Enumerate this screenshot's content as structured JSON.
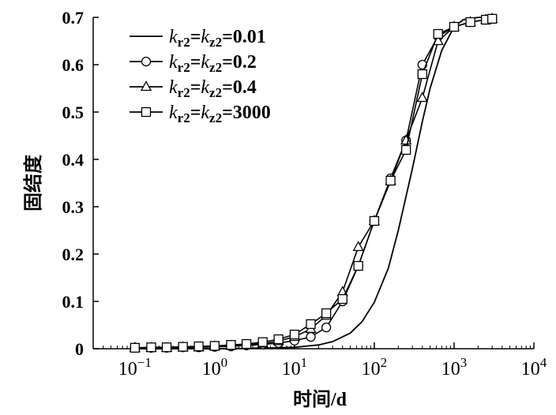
{
  "chart_data": {
    "type": "line",
    "title": "",
    "xlabel": "时间/d",
    "ylabel": "固结度",
    "x_scale": "log",
    "xlim": [
      0.03,
      10000
    ],
    "ylim": [
      0,
      0.7
    ],
    "x_ticks": [
      {
        "value": 0.1,
        "base": "10",
        "exp": "−1"
      },
      {
        "value": 1,
        "base": "10",
        "exp": "0"
      },
      {
        "value": 10,
        "base": "10",
        "exp": "1"
      },
      {
        "value": 100,
        "base": "10",
        "exp": "2"
      },
      {
        "value": 1000,
        "base": "10",
        "exp": "3"
      },
      {
        "value": 10000,
        "base": "10",
        "exp": "4"
      }
    ],
    "y_ticks": [
      {
        "value": 0,
        "label": "0"
      },
      {
        "value": 0.1,
        "label": "0.1"
      },
      {
        "value": 0.2,
        "label": "0.2"
      },
      {
        "value": 0.3,
        "label": "0.3"
      },
      {
        "value": 0.4,
        "label": "0.4"
      },
      {
        "value": 0.5,
        "label": "0.5"
      },
      {
        "value": 0.6,
        "label": "0.6"
      },
      {
        "value": 0.7,
        "label": "0.7"
      }
    ],
    "grid": false,
    "legend_position": "top-left",
    "series": [
      {
        "name": "k_r2=k_z2=0.01",
        "legend": {
          "k1": "k",
          "s1": "r2",
          "eq1": "=",
          "k2": "k",
          "s2": "z2",
          "eq2": "=",
          "val": "0.01"
        },
        "marker": "none",
        "x": [
          0.1,
          1,
          3,
          6,
          10,
          20,
          30,
          50,
          70,
          100,
          150,
          200,
          300,
          400,
          500,
          700,
          1000,
          1300,
          2000,
          3000
        ],
        "y": [
          0.0,
          0.0,
          0.001,
          0.002,
          0.003,
          0.008,
          0.015,
          0.033,
          0.057,
          0.098,
          0.17,
          0.25,
          0.38,
          0.48,
          0.55,
          0.63,
          0.68,
          0.695,
          0.7,
          0.7
        ]
      },
      {
        "name": "k_r2=k_z2=0.2",
        "legend": {
          "k1": "k",
          "s1": "r2",
          "eq1": "=",
          "k2": "k",
          "s2": "z2",
          "eq2": "=",
          "val": "0.2"
        },
        "marker": "circle",
        "x": [
          0.1,
          0.16,
          0.25,
          0.4,
          0.63,
          1,
          1.6,
          2.5,
          4,
          6.3,
          10,
          16,
          25,
          40,
          63,
          100,
          160,
          250,
          400,
          630,
          1000,
          1600,
          2500,
          3000
        ],
        "y": [
          0.002,
          0.002,
          0.002,
          0.003,
          0.003,
          0.004,
          0.005,
          0.007,
          0.009,
          0.012,
          0.017,
          0.025,
          0.045,
          0.1,
          0.175,
          0.27,
          0.36,
          0.44,
          0.6,
          0.66,
          0.68,
          0.69,
          0.695,
          0.697
        ]
      },
      {
        "name": "k_r2=k_z2=0.4",
        "legend": {
          "k1": "k",
          "s1": "r2",
          "eq1": "=",
          "k2": "k",
          "s2": "z2",
          "eq2": "=",
          "val": "0.4"
        },
        "marker": "triangle",
        "x": [
          0.1,
          0.16,
          0.25,
          0.4,
          0.63,
          1,
          1.6,
          2.5,
          4,
          6.3,
          10,
          16,
          25,
          40,
          63,
          100,
          160,
          250,
          400,
          630,
          1000,
          1600,
          2500,
          3000
        ],
        "y": [
          0.002,
          0.002,
          0.002,
          0.003,
          0.003,
          0.005,
          0.006,
          0.008,
          0.011,
          0.016,
          0.025,
          0.042,
          0.07,
          0.12,
          0.215,
          0.27,
          0.355,
          0.44,
          0.53,
          0.65,
          0.68,
          0.69,
          0.695,
          0.697
        ]
      },
      {
        "name": "k_r2=k_z2=3000",
        "legend": {
          "k1": "k",
          "s1": "r2",
          "eq1": "=",
          "k2": "k",
          "s2": "z2",
          "eq2": "=",
          "val": "3000"
        },
        "marker": "square",
        "x": [
          0.1,
          0.16,
          0.25,
          0.4,
          0.63,
          1,
          1.6,
          2.5,
          4,
          6.3,
          10,
          16,
          25,
          40,
          63,
          100,
          160,
          250,
          400,
          630,
          1000,
          1600,
          2500,
          3000
        ],
        "y": [
          0.002,
          0.003,
          0.003,
          0.004,
          0.005,
          0.006,
          0.008,
          0.01,
          0.014,
          0.02,
          0.03,
          0.052,
          0.075,
          0.105,
          0.175,
          0.27,
          0.355,
          0.42,
          0.58,
          0.665,
          0.68,
          0.69,
          0.695,
          0.697
        ]
      }
    ]
  }
}
